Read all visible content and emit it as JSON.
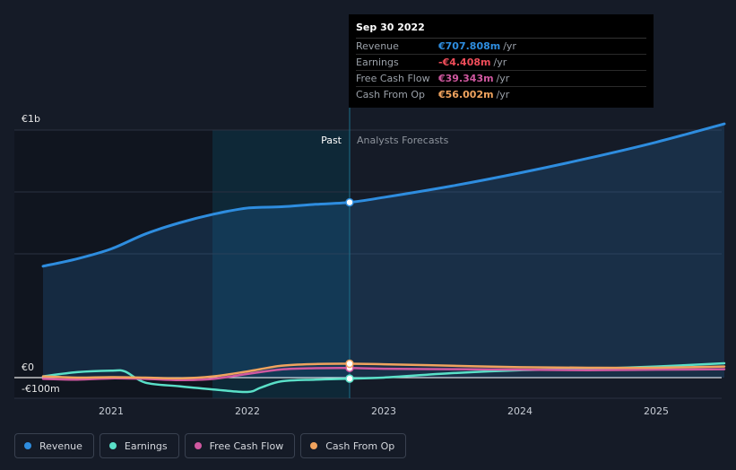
{
  "tooltip": {
    "date": "Sep 30 2022",
    "rows": [
      {
        "label": "Revenue",
        "value": "€707.808m",
        "unit": "/yr",
        "color": "#2e8ddf"
      },
      {
        "label": "Earnings",
        "value": "-€4.408m",
        "unit": "/yr",
        "color": "#f04d5a"
      },
      {
        "label": "Free Cash Flow",
        "value": "€39.343m",
        "unit": "/yr",
        "color": "#d058a0"
      },
      {
        "label": "Cash From Op",
        "value": "€56.002m",
        "unit": "/yr",
        "color": "#f0a35e"
      }
    ]
  },
  "labels": {
    "past": "Past",
    "forecast": "Analysts Forecasts"
  },
  "legend": [
    {
      "label": "Revenue",
      "color": "#2e8ddf"
    },
    {
      "label": "Earnings",
      "color": "#5ae0c8"
    },
    {
      "label": "Free Cash Flow",
      "color": "#d058a0"
    },
    {
      "label": "Cash From Op",
      "color": "#f0a35e"
    }
  ],
  "chart_data": {
    "type": "line",
    "y_ticks": [
      {
        "value": 1000,
        "label": "€1b"
      },
      {
        "value": 0,
        "label": "€0"
      },
      {
        "value": -100,
        "label": "-€100m"
      }
    ],
    "x_ticks": [
      "2021",
      "2022",
      "2023",
      "2024",
      "2025"
    ],
    "ylim": [
      -100,
      1000
    ],
    "series": [
      {
        "name": "Revenue",
        "color": "#2e8ddf",
        "fill": true,
        "values": [
          [
            2020.5,
            450
          ],
          [
            2020.75,
            480
          ],
          [
            2021.0,
            520
          ],
          [
            2021.25,
            580
          ],
          [
            2021.5,
            625
          ],
          [
            2021.75,
            660
          ],
          [
            2022.0,
            685
          ],
          [
            2022.25,
            690
          ],
          [
            2022.5,
            700
          ],
          [
            2022.75,
            708
          ],
          [
            2023.0,
            728
          ],
          [
            2023.5,
            774
          ],
          [
            2024.0,
            827
          ],
          [
            2024.5,
            886
          ],
          [
            2025.0,
            951
          ],
          [
            2025.5,
            1025
          ]
        ]
      },
      {
        "name": "Earnings",
        "color": "#5ae0c8",
        "values": [
          [
            2020.5,
            5
          ],
          [
            2020.75,
            22
          ],
          [
            2021.0,
            28
          ],
          [
            2021.1,
            25
          ],
          [
            2021.25,
            -20
          ],
          [
            2021.5,
            -35
          ],
          [
            2021.75,
            -48
          ],
          [
            2022.0,
            -58
          ],
          [
            2022.1,
            -40
          ],
          [
            2022.25,
            -15
          ],
          [
            2022.5,
            -8
          ],
          [
            2022.75,
            -4
          ],
          [
            2023.0,
            0
          ],
          [
            2023.5,
            18
          ],
          [
            2024.0,
            30
          ],
          [
            2024.5,
            35
          ],
          [
            2025.0,
            45
          ],
          [
            2025.5,
            58
          ]
        ]
      },
      {
        "name": "Free Cash Flow",
        "color": "#d058a0",
        "values": [
          [
            2020.5,
            -5
          ],
          [
            2020.75,
            -8
          ],
          [
            2021.0,
            -3
          ],
          [
            2021.25,
            -5
          ],
          [
            2021.5,
            -10
          ],
          [
            2021.75,
            -5
          ],
          [
            2022.0,
            15
          ],
          [
            2022.25,
            33
          ],
          [
            2022.5,
            38
          ],
          [
            2022.75,
            39
          ],
          [
            2023.0,
            36
          ],
          [
            2023.5,
            34
          ],
          [
            2024.0,
            32
          ],
          [
            2024.5,
            30
          ],
          [
            2025.0,
            32
          ],
          [
            2025.5,
            34
          ]
        ]
      },
      {
        "name": "Cash From Op",
        "color": "#f0a35e",
        "values": [
          [
            2020.5,
            5
          ],
          [
            2020.75,
            0
          ],
          [
            2021.0,
            2
          ],
          [
            2021.25,
            0
          ],
          [
            2021.5,
            -3
          ],
          [
            2021.75,
            5
          ],
          [
            2022.0,
            25
          ],
          [
            2022.25,
            48
          ],
          [
            2022.5,
            55
          ],
          [
            2022.75,
            56
          ],
          [
            2023.0,
            54
          ],
          [
            2023.5,
            48
          ],
          [
            2024.0,
            42
          ],
          [
            2024.5,
            40
          ],
          [
            2025.0,
            40
          ],
          [
            2025.5,
            45
          ]
        ]
      }
    ],
    "highlight_x": 2022.75
  }
}
